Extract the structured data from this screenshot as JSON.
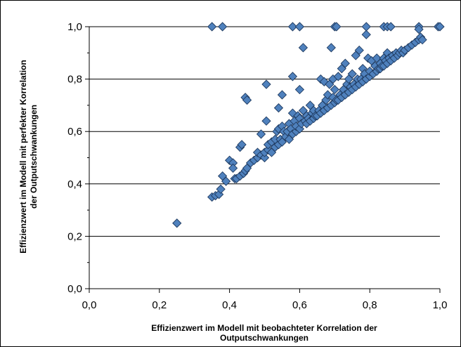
{
  "chart_data": {
    "type": "scatter",
    "title": "",
    "xlabel_lines": [
      "Effizienzwert im Modell mit beobachteter Korrelation der",
      "Outputschwankungen"
    ],
    "ylabel_lines": [
      "Effizienzwert im Modell mit perfekter Korrelation",
      "der Outputschwankungen"
    ],
    "xlim": [
      0,
      1
    ],
    "ylim": [
      0,
      1
    ],
    "x_ticks": [
      "0,0",
      "0,2",
      "0,4",
      "0,6",
      "0,8",
      "1,0"
    ],
    "y_ticks": [
      "0,0",
      "0,2",
      "0,4",
      "0,6",
      "0,8",
      "1,0"
    ],
    "grid": "horizontal",
    "legend": "none",
    "marker": "diamond",
    "colors": {
      "marker_fill": "#4f81bd",
      "marker_stroke": "#1f3a5f",
      "grid": "#000000",
      "frame": "#000000"
    },
    "points": [
      [
        0.25,
        0.25
      ],
      [
        0.35,
        0.35
      ],
      [
        0.36,
        0.355
      ],
      [
        0.37,
        0.36
      ],
      [
        0.375,
        0.38
      ],
      [
        0.38,
        0.43
      ],
      [
        0.39,
        0.41
      ],
      [
        0.4,
        0.49
      ],
      [
        0.41,
        0.48
      ],
      [
        0.41,
        0.46
      ],
      [
        0.415,
        0.42
      ],
      [
        0.42,
        0.42
      ],
      [
        0.43,
        0.43
      ],
      [
        0.43,
        0.54
      ],
      [
        0.435,
        0.55
      ],
      [
        0.44,
        0.44
      ],
      [
        0.445,
        0.45
      ],
      [
        0.445,
        0.73
      ],
      [
        0.45,
        0.72
      ],
      [
        0.45,
        0.46
      ],
      [
        0.46,
        0.48
      ],
      [
        0.47,
        0.49
      ],
      [
        0.48,
        0.5
      ],
      [
        0.48,
        0.52
      ],
      [
        0.49,
        0.51
      ],
      [
        0.49,
        0.59
      ],
      [
        0.5,
        0.5
      ],
      [
        0.5,
        0.52
      ],
      [
        0.505,
        0.78
      ],
      [
        0.505,
        0.64
      ],
      [
        0.51,
        0.53
      ],
      [
        0.51,
        0.55
      ],
      [
        0.52,
        0.52
      ],
      [
        0.52,
        0.56
      ],
      [
        0.53,
        0.54
      ],
      [
        0.53,
        0.57
      ],
      [
        0.535,
        0.6
      ],
      [
        0.54,
        0.55
      ],
      [
        0.54,
        0.61
      ],
      [
        0.54,
        0.69
      ],
      [
        0.545,
        0.57
      ],
      [
        0.55,
        0.56
      ],
      [
        0.55,
        0.74
      ],
      [
        0.55,
        0.62
      ],
      [
        0.555,
        0.6
      ],
      [
        0.56,
        0.58
      ],
      [
        0.565,
        0.6
      ],
      [
        0.57,
        0.57
      ],
      [
        0.57,
        0.63
      ],
      [
        0.575,
        0.61
      ],
      [
        0.58,
        0.59
      ],
      [
        0.58,
        0.81
      ],
      [
        0.58,
        0.67
      ],
      [
        0.585,
        0.64
      ],
      [
        0.59,
        0.6
      ],
      [
        0.59,
        0.62
      ],
      [
        0.595,
        0.66
      ],
      [
        0.6,
        0.61
      ],
      [
        0.6,
        0.76
      ],
      [
        0.6,
        0.65
      ],
      [
        0.605,
        0.63
      ],
      [
        0.61,
        0.92
      ],
      [
        0.61,
        0.68
      ],
      [
        0.615,
        0.64
      ],
      [
        0.62,
        0.63
      ],
      [
        0.62,
        0.66
      ],
      [
        0.625,
        0.65
      ],
      [
        0.63,
        0.64
      ],
      [
        0.63,
        0.7
      ],
      [
        0.635,
        0.67
      ],
      [
        0.64,
        0.65
      ],
      [
        0.64,
        0.68
      ],
      [
        0.645,
        0.66
      ],
      [
        0.65,
        0.66
      ],
      [
        0.655,
        0.68
      ],
      [
        0.66,
        0.8
      ],
      [
        0.66,
        0.67
      ],
      [
        0.665,
        0.7
      ],
      [
        0.67,
        0.68
      ],
      [
        0.67,
        0.79
      ],
      [
        0.675,
        0.72
      ],
      [
        0.68,
        0.69
      ],
      [
        0.68,
        0.74
      ],
      [
        0.685,
        0.78
      ],
      [
        0.69,
        0.92
      ],
      [
        0.69,
        0.7
      ],
      [
        0.695,
        0.73
      ],
      [
        0.695,
        0.8
      ],
      [
        0.7,
        0.71
      ],
      [
        0.7,
        0.76
      ],
      [
        0.705,
        0.72
      ],
      [
        0.71,
        0.72
      ],
      [
        0.71,
        0.81
      ],
      [
        0.715,
        0.74
      ],
      [
        0.72,
        0.73
      ],
      [
        0.72,
        0.84
      ],
      [
        0.725,
        0.76
      ],
      [
        0.73,
        0.74
      ],
      [
        0.73,
        0.86
      ],
      [
        0.735,
        0.78
      ],
      [
        0.74,
        0.75
      ],
      [
        0.74,
        0.8
      ],
      [
        0.745,
        0.77
      ],
      [
        0.75,
        0.76
      ],
      [
        0.75,
        0.82
      ],
      [
        0.755,
        0.78
      ],
      [
        0.76,
        0.77
      ],
      [
        0.76,
        0.89
      ],
      [
        0.765,
        0.8
      ],
      [
        0.77,
        0.78
      ],
      [
        0.77,
        0.91
      ],
      [
        0.775,
        0.8
      ],
      [
        0.78,
        0.79
      ],
      [
        0.78,
        0.84
      ],
      [
        0.785,
        0.82
      ],
      [
        0.79,
        0.8
      ],
      [
        0.79,
        0.97
      ],
      [
        0.795,
        0.88
      ],
      [
        0.8,
        0.81
      ],
      [
        0.8,
        0.83
      ],
      [
        0.805,
        0.87
      ],
      [
        0.81,
        0.82
      ],
      [
        0.815,
        0.85
      ],
      [
        0.82,
        0.83
      ],
      [
        0.82,
        0.88
      ],
      [
        0.825,
        0.84
      ],
      [
        0.83,
        0.84
      ],
      [
        0.83,
        0.86
      ],
      [
        0.835,
        0.85
      ],
      [
        0.84,
        0.85
      ],
      [
        0.84,
        0.88
      ],
      [
        0.845,
        0.87
      ],
      [
        0.85,
        0.86
      ],
      [
        0.85,
        0.9
      ],
      [
        0.855,
        0.88
      ],
      [
        0.86,
        0.87
      ],
      [
        0.865,
        0.89
      ],
      [
        0.87,
        0.88
      ],
      [
        0.875,
        0.9
      ],
      [
        0.88,
        0.89
      ],
      [
        0.885,
        0.9
      ],
      [
        0.89,
        0.91
      ],
      [
        0.895,
        0.9
      ],
      [
        0.9,
        0.91
      ],
      [
        0.91,
        0.92
      ],
      [
        0.92,
        0.93
      ],
      [
        0.93,
        0.94
      ],
      [
        0.94,
        0.95
      ],
      [
        0.945,
        0.96
      ],
      [
        0.95,
        0.95
      ],
      [
        0.35,
        1.0
      ],
      [
        0.38,
        1.0
      ],
      [
        0.58,
        1.0
      ],
      [
        0.6,
        1.0
      ],
      [
        0.7,
        1.0
      ],
      [
        0.705,
        1.0
      ],
      [
        0.79,
        1.0
      ],
      [
        0.84,
        1.0
      ],
      [
        0.85,
        1.0
      ],
      [
        0.86,
        1.0
      ],
      [
        0.94,
        1.0
      ],
      [
        0.94,
        0.99
      ],
      [
        0.995,
        1.0
      ],
      [
        1.0,
        1.0
      ]
    ]
  }
}
